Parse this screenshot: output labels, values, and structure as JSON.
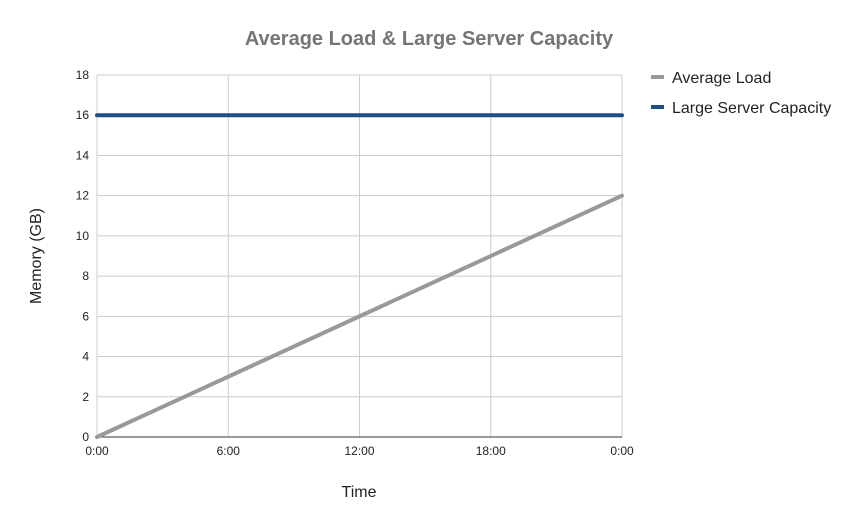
{
  "chart_data": {
    "type": "line",
    "title": "Average Load & Large Server Capacity",
    "xlabel": "Time",
    "ylabel": "Memory (GB)",
    "x": [
      "0:00",
      "6:00",
      "12:00",
      "18:00",
      "0:00"
    ],
    "xlim": [
      0,
      24
    ],
    "ylim": [
      0,
      18
    ],
    "yticks": [
      0,
      2,
      4,
      6,
      8,
      10,
      12,
      14,
      16,
      18
    ],
    "grid": true,
    "legend": "right",
    "series": [
      {
        "name": "Average Load",
        "color": "#999999",
        "x": [
          0,
          24
        ],
        "values": [
          0,
          12
        ]
      },
      {
        "name": "Large Server Capacity",
        "color": "#1c4f82",
        "x": [
          0,
          24
        ],
        "values": [
          16,
          16
        ]
      }
    ]
  }
}
